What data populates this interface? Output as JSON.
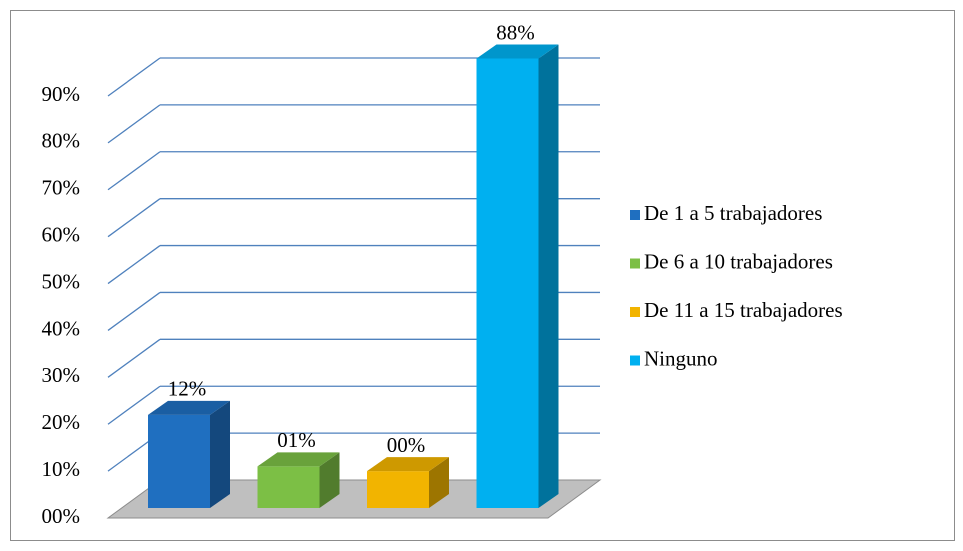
{
  "chart_data": {
    "type": "bar",
    "series": [
      {
        "name": "De 1 a 5 trabajadores",
        "color": "#1f6fc0",
        "values": [
          12
        ],
        "value_labels": [
          "12%"
        ]
      },
      {
        "name": "De 6 a 10 trabajadores",
        "color": "#7cbf45",
        "values": [
          1
        ],
        "value_labels": [
          "01%"
        ]
      },
      {
        "name": "De 11 a 15 trabajadores",
        "color": "#f2b400",
        "values": [
          0
        ],
        "value_labels": [
          "00%"
        ]
      },
      {
        "name": "Ninguno",
        "color": "#00b0f0",
        "values": [
          88
        ],
        "value_labels": [
          "88%"
        ]
      }
    ],
    "ylim": [
      0,
      90
    ],
    "yticks": [
      {
        "value": 0,
        "label": "00%"
      },
      {
        "value": 10,
        "label": "10%"
      },
      {
        "value": 20,
        "label": "20%"
      },
      {
        "value": 30,
        "label": "30%"
      },
      {
        "value": 40,
        "label": "40%"
      },
      {
        "value": 50,
        "label": "50%"
      },
      {
        "value": 60,
        "label": "60%"
      },
      {
        "value": 70,
        "label": "70%"
      },
      {
        "value": 80,
        "label": "80%"
      },
      {
        "value": 90,
        "label": "90%"
      }
    ],
    "grid": true,
    "legend": "right"
  }
}
